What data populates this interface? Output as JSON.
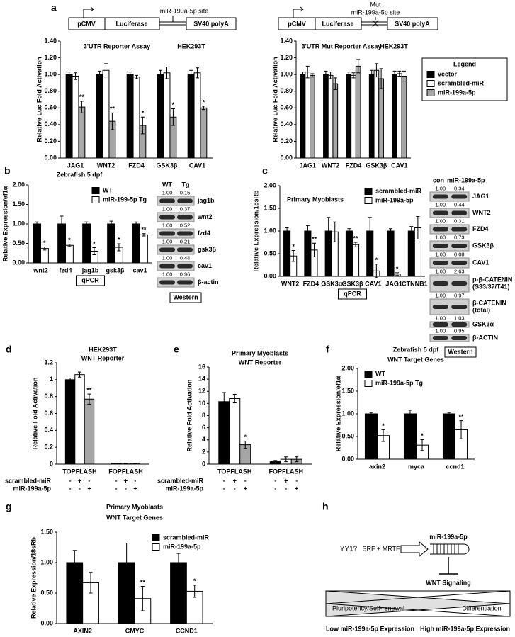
{
  "panel_letters": [
    "a",
    "b",
    "c",
    "d",
    "e",
    "f",
    "g",
    "h"
  ],
  "constructs": [
    {
      "promoter": "pCMV",
      "reporter": "Luciferase",
      "polya": "SV40 polyA",
      "site": "miR-199a-5p site"
    },
    {
      "promoter": "pCMV",
      "reporter": "Luciferase",
      "polya": "SV40 polyA",
      "mut": "Mut",
      "site": "miR-199a-5p site"
    }
  ],
  "chart_data": [
    {
      "type": "bar",
      "title": "3'UTR Reporter Assay",
      "subtitle": "HEK293T",
      "ylabel": "Relative Luc Fold Activation",
      "categories": [
        "JAG1",
        "WNT2",
        "FZD4",
        "GSK3β",
        "CAV1"
      ],
      "series": [
        {
          "name": "vector",
          "color": "#000000",
          "values": [
            1,
            1,
            1,
            1,
            1
          ],
          "errors": [
            0.03,
            0.04,
            0.03,
            0.05,
            0.05
          ]
        },
        {
          "name": "scrambled-miR",
          "color": "#ffffff",
          "values": [
            0.98,
            1.05,
            0.97,
            1.02,
            1.02
          ],
          "errors": [
            0.04,
            0.08,
            0.02,
            0.07,
            0.06
          ]
        },
        {
          "name": "miR-199a-5p",
          "color": "#a6a6a6",
          "values": [
            0.61,
            0.44,
            0.39,
            0.49,
            0.6
          ],
          "errors": [
            0.07,
            0.1,
            0.1,
            0.1,
            0.02
          ],
          "significance": [
            "**",
            "**",
            "*",
            "*",
            "*"
          ]
        }
      ],
      "ylim": [
        0,
        1.4
      ],
      "yticks": [
        {
          "value": 0,
          "label": "0.00"
        },
        {
          "value": 0.2,
          "label": "0.20"
        },
        {
          "value": 0.4,
          "label": "0.40"
        },
        {
          "value": 0.6,
          "label": "0.60"
        },
        {
          "value": 0.8,
          "label": "0.80"
        },
        {
          "value": 1,
          "label": "1.00"
        },
        {
          "value": 1.2,
          "label": "1.20"
        },
        {
          "value": 1.4,
          "label": "1.40"
        }
      ],
      "legend": "right",
      "legend_title": "Legend"
    },
    {
      "type": "bar",
      "title": "3'UTR Mut Reporter Assay",
      "subtitle": "HEK293T",
      "ylabel": "Relative Luc Fold Activation",
      "categories": [
        "JAG1",
        "WNT2",
        "FZD4",
        "GSK3β",
        "CAV1"
      ],
      "series": [
        {
          "color": "#000000",
          "values": [
            1,
            1,
            1,
            1,
            1
          ],
          "errors": [
            0.03,
            0.04,
            0.03,
            0.05,
            0.04
          ]
        },
        {
          "color": "#ffffff",
          "values": [
            1.03,
            0.99,
            0.99,
            1.05,
            1.01
          ],
          "errors": [
            0.07,
            0.04,
            0.03,
            0.08,
            0.03
          ]
        },
        {
          "color": "#a6a6a6",
          "values": [
            0.99,
            0.89,
            1.1,
            0.95,
            0.98
          ],
          "errors": [
            0.02,
            0.07,
            0.08,
            0.12,
            0.06
          ]
        }
      ],
      "ylim": [
        0,
        1.4
      ],
      "yticks": [
        {
          "value": 0,
          "label": "0.00"
        },
        {
          "value": 0.2,
          "label": "0.20"
        },
        {
          "value": 0.4,
          "label": "0.40"
        },
        {
          "value": 0.6,
          "label": "0.60"
        },
        {
          "value": 0.8,
          "label": "0.80"
        },
        {
          "value": 1,
          "label": "1.00"
        },
        {
          "value": 1.2,
          "label": "1.20"
        },
        {
          "value": 1.4,
          "label": "1.40"
        }
      ]
    },
    {
      "type": "bar",
      "title": "Zebrafish 5 dpf",
      "ylabel": "Relative Expression/ef1α",
      "categories": [
        "wnt2",
        "fzd4",
        "jag1b",
        "gsk3β",
        "cav1"
      ],
      "series": [
        {
          "name": "WT",
          "color": "#000000",
          "values": [
            1,
            1,
            1,
            1,
            1
          ],
          "errors": [
            0.05,
            0.2,
            0.05,
            0.07,
            0.05
          ]
        },
        {
          "name": "miR-199-5p Tg",
          "color": "#ffffff",
          "values": [
            0.37,
            0.45,
            0.3,
            0.4,
            0.72
          ],
          "errors": [
            0.04,
            0.03,
            0.09,
            0.09,
            0.03
          ],
          "significance": [
            "*",
            "*",
            "*",
            "*",
            "**"
          ]
        }
      ],
      "ylim": [
        0,
        2
      ],
      "yticks": [
        {
          "value": 0,
          "label": "0.00"
        },
        {
          "value": 0.5,
          "label": "0.50"
        },
        {
          "value": 1,
          "label": "1.00"
        },
        {
          "value": 1.5,
          "label": "1.50"
        },
        {
          "value": 2,
          "label": "2.00"
        }
      ],
      "legend": "upper right",
      "method": "qPCR"
    },
    {
      "type": "bar",
      "title": "Primary Myoblasts",
      "ylabel": "Relative Expression/18sRb",
      "categories": [
        "WNT2",
        "FZD4",
        "GSK3α",
        "GSK3β",
        "CAV1",
        "JAG1",
        "CTNNB1"
      ],
      "series": [
        {
          "name": "scrambled-miR",
          "color": "#000000",
          "values": [
            1,
            1,
            1,
            1,
            1,
            1,
            1
          ],
          "errors": [
            0.07,
            0.12,
            0.3,
            0.05,
            0.3,
            0.05,
            0.1
          ]
        },
        {
          "name": "miR-199a-5p",
          "color": "#ffffff",
          "values": [
            0.45,
            0.58,
            0.98,
            0.7,
            0.12,
            0.05,
            1.07
          ],
          "errors": [
            0.12,
            0.15,
            0.22,
            0.05,
            0.15,
            0.03,
            0.25
          ],
          "significance": [
            "*",
            "**",
            null,
            "**",
            "*",
            "*",
            null
          ]
        }
      ],
      "ylim": [
        0,
        2
      ],
      "yticks": [
        {
          "value": 0,
          "label": "0.00"
        },
        {
          "value": 0.5,
          "label": "0.50"
        },
        {
          "value": 1,
          "label": "1.00"
        },
        {
          "value": 1.5,
          "label": "1.50"
        },
        {
          "value": 2,
          "label": "2.00"
        }
      ],
      "legend": "upper right",
      "method": "qPCR"
    },
    {
      "type": "bar",
      "title": "HEK293T",
      "subtitle": "WNT Reporter",
      "ylabel": "Relative Fold Activation",
      "categories": [
        "TOPFLASH",
        "FOPFLASH"
      ],
      "series": [
        {
          "color": "#000000",
          "values": [
            1,
            0.01
          ],
          "errors": [
            0.02,
            0.002
          ]
        },
        {
          "color": "#ffffff",
          "values": [
            1.06,
            0.01
          ],
          "errors": [
            0.03,
            0.002
          ]
        },
        {
          "color": "#a6a6a6",
          "values": [
            0.77,
            0.01
          ],
          "errors": [
            0.06,
            0.002
          ],
          "significance": [
            "**",
            null
          ]
        }
      ],
      "ylim": [
        0,
        1.2
      ],
      "yticks": [
        0,
        0.2,
        0.4,
        0.6,
        0.8,
        1,
        1.2
      ],
      "conditions": [
        {
          "name": "scrambled-miR",
          "signs": [
            "-",
            "+",
            "-",
            "-",
            "+",
            "-"
          ]
        },
        {
          "name": "miR-199a-5p",
          "signs": [
            "-",
            "-",
            "+",
            "-",
            "-",
            "+"
          ]
        }
      ]
    },
    {
      "type": "bar",
      "title": "Primary Myoblasts",
      "subtitle": "WNT Reporter",
      "ylabel": "Relative Fold Activation",
      "categories": [
        "TOPFLASH",
        "FOPFLASH"
      ],
      "series": [
        {
          "color": "#000000",
          "values": [
            10.3,
            0.4
          ],
          "errors": [
            1.5,
            0.2
          ]
        },
        {
          "color": "#ffffff",
          "values": [
            10.8,
            0.8
          ],
          "errors": [
            0.7,
            0.4
          ]
        },
        {
          "color": "#a6a6a6",
          "values": [
            3.2,
            0.8
          ],
          "errors": [
            0.6,
            0.4
          ],
          "significance": [
            "*",
            null
          ]
        }
      ],
      "ylim": [
        0,
        16
      ],
      "yticks": [
        0,
        2,
        4,
        6,
        8,
        10,
        12,
        14,
        16
      ],
      "conditions": [
        {
          "name": "scrambled-miR",
          "signs": [
            "-",
            "+",
            "-",
            "-",
            "+",
            "-"
          ]
        },
        {
          "name": "miR-199a-5p",
          "signs": [
            "-",
            "-",
            "+",
            "-",
            "-",
            "+"
          ]
        }
      ]
    },
    {
      "type": "bar",
      "title": "Zebrafish 5 dpf",
      "subtitle": "WNT Target Genes",
      "ylabel": "Relative Expression/ef1α",
      "categories": [
        "axin2",
        "myca",
        "ccnd1"
      ],
      "series": [
        {
          "name": "WT",
          "color": "#000000",
          "values": [
            1,
            1,
            1
          ],
          "errors": [
            0.03,
            0.08,
            0.03
          ]
        },
        {
          "name": "miR-199a-5p Tg",
          "color": "#ffffff",
          "values": [
            0.52,
            0.31,
            0.65
          ],
          "errors": [
            0.13,
            0.12,
            0.2
          ],
          "significance": [
            "*",
            "*",
            "**"
          ]
        }
      ],
      "ylim": [
        0,
        2
      ],
      "yticks": [
        {
          "value": 0,
          "label": "0.00"
        },
        {
          "value": 0.5,
          "label": "0.50"
        },
        {
          "value": 1,
          "label": "1.00"
        },
        {
          "value": 1.5,
          "label": "1.50"
        },
        {
          "value": 2,
          "label": "2.00"
        }
      ],
      "legend": "upper left"
    },
    {
      "type": "bar",
      "title": "Primary Myoblasts",
      "subtitle": "WNT Target Genes",
      "ylabel": "Relative Expression/18sRb",
      "categories": [
        "AXIN2",
        "CMYC",
        "CCND1"
      ],
      "series": [
        {
          "name": "scrambled-miR",
          "color": "#000000",
          "values": [
            1,
            1,
            1
          ],
          "errors": [
            0.2,
            0.32,
            0.15
          ]
        },
        {
          "name": "miR-199a-5p",
          "color": "#ffffff",
          "values": [
            0.67,
            0.41,
            0.53
          ],
          "errors": [
            0.17,
            0.2,
            0.1
          ],
          "significance": [
            null,
            "**",
            "*"
          ]
        }
      ],
      "ylim": [
        0,
        1.5
      ],
      "yticks": [
        {
          "value": 0,
          "label": "0.00"
        },
        {
          "value": 0.5,
          "label": "0.50"
        },
        {
          "value": 1,
          "label": "1.00"
        },
        {
          "value": 1.5,
          "label": "1.50"
        }
      ],
      "legend": "upper right"
    }
  ],
  "westerns": [
    {
      "columns": [
        "WT",
        "Tg"
      ],
      "rows": [
        {
          "lines": [
            "jag1b"
          ],
          "values": [
            "1.00",
            "0.15"
          ]
        },
        {
          "lines": [
            "wnt2"
          ],
          "values": [
            "1.00",
            "0.37"
          ]
        },
        {
          "lines": [
            "fzd4"
          ],
          "values": [
            "1.00",
            "0.52"
          ]
        },
        {
          "lines": [
            "gsk3β"
          ],
          "values": [
            "1.00",
            "0.21"
          ]
        },
        {
          "lines": [
            "cav1"
          ],
          "values": [
            "1.00",
            "0.44"
          ]
        },
        {
          "lines": [
            "β-actin"
          ],
          "values": [
            "1.00",
            "0.96"
          ]
        }
      ],
      "footer": "Western"
    },
    {
      "columns": [
        "con",
        "miR-199a-5p"
      ],
      "rows": [
        {
          "lines": [
            "JAG1"
          ],
          "values": [
            "1.00",
            "0.34"
          ]
        },
        {
          "lines": [
            "WNT2"
          ],
          "values": [
            "1.00",
            "0.44"
          ]
        },
        {
          "lines": [
            "FZD4"
          ],
          "values": [
            "1.00",
            "0.31"
          ]
        },
        {
          "lines": [
            "GSK3β"
          ],
          "values": [
            "1.00",
            "0.73"
          ]
        },
        {
          "lines": [
            "CAV1"
          ],
          "values": [
            "1.00",
            "0.08"
          ]
        },
        {
          "lines": [
            "p-β-CATENIN",
            "(S33/37/T41)"
          ],
          "values": [
            "1.00",
            "2.63"
          ]
        },
        {
          "lines": [
            "β-CATENIN",
            "(total)"
          ],
          "values": [
            "1.00",
            "0.97"
          ]
        },
        {
          "lines": [
            "GSK3α"
          ],
          "values": [
            "1.00",
            "1.03"
          ]
        },
        {
          "lines": [
            "β-ACTIN"
          ],
          "values": [
            "1.00",
            "0.95"
          ]
        }
      ],
      "footer": "Western"
    }
  ],
  "model": {
    "upstream": "YY1?",
    "activators": "SRF + MRTF",
    "mirna": "miR-199a-5p",
    "target": "WNT Signaling",
    "left_state": "Pluripotency/Self-renewal",
    "right_state": "Differentiation",
    "left_axis": "Low miR-199a-5p Expression",
    "right_axis": "High miR-199a-5p Expression"
  }
}
